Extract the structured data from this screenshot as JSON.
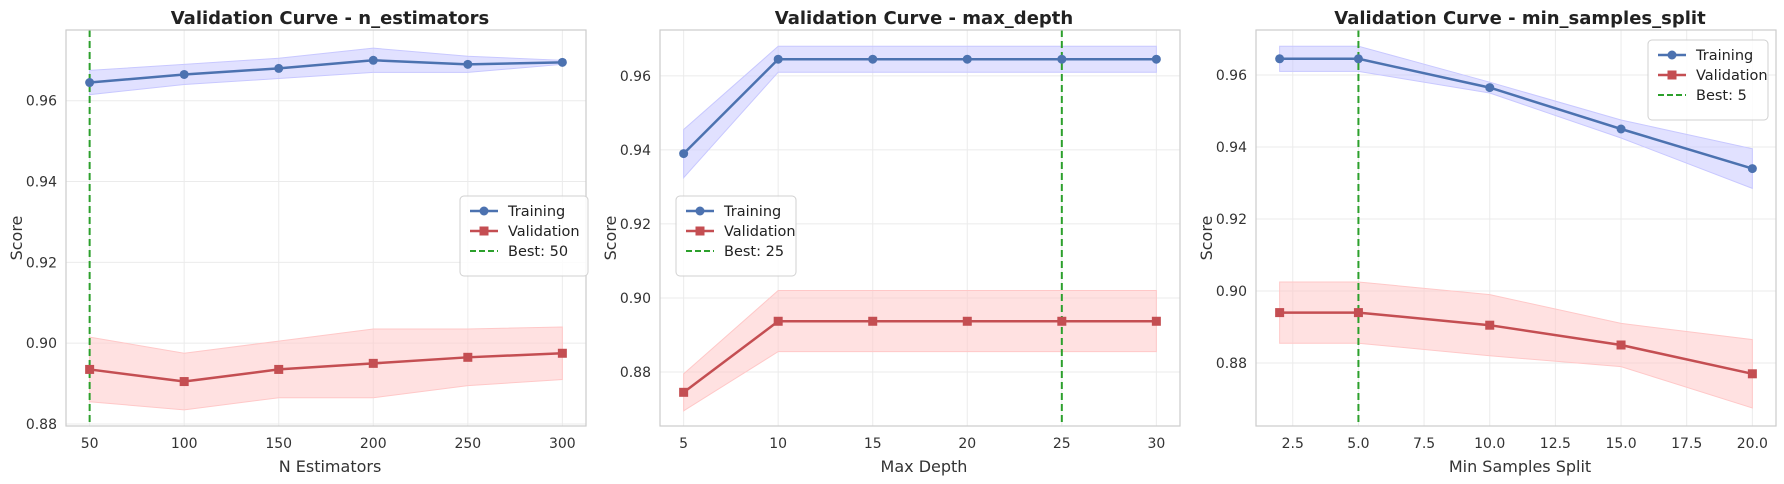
{
  "chart_data": [
    {
      "type": "line",
      "title": "Validation Curve - n_estimators",
      "xlabel": "N Estimators",
      "ylabel": "Score",
      "x": [
        50,
        100,
        150,
        200,
        250,
        300
      ],
      "xlim": [
        37.5,
        312.5
      ],
      "ylim": [
        0.8795,
        0.9775
      ],
      "xticks": [
        "50",
        "100",
        "150",
        "200",
        "250",
        "300"
      ],
      "yticks": [
        "0.88",
        "0.90",
        "0.92",
        "0.94",
        "0.96"
      ],
      "grid": true,
      "legend_position": "center-right",
      "series": [
        {
          "name": "Training",
          "color": "#4c72b0",
          "fill": "#c8c8ff",
          "marker": "circle",
          "values": [
            0.9645,
            0.9665,
            0.968,
            0.97,
            0.969,
            0.9695
          ],
          "lower": [
            0.9615,
            0.964,
            0.9655,
            0.967,
            0.967,
            0.969
          ],
          "upper": [
            0.9675,
            0.969,
            0.9705,
            0.973,
            0.971,
            0.97
          ]
        },
        {
          "name": "Validation",
          "color": "#c44e52",
          "fill": "#ffc8c8",
          "marker": "square",
          "values": [
            0.8935,
            0.8905,
            0.8935,
            0.895,
            0.8965,
            0.8975
          ],
          "lower": [
            0.8855,
            0.8835,
            0.8865,
            0.8865,
            0.8895,
            0.891
          ],
          "upper": [
            0.9015,
            0.8975,
            0.9005,
            0.9035,
            0.9035,
            0.904
          ]
        }
      ],
      "best": {
        "label": "Best: 50",
        "x": 50,
        "color": "#2ca02c"
      }
    },
    {
      "type": "line",
      "title": "Validation Curve - max_depth",
      "xlabel": "Max Depth",
      "ylabel": "Score",
      "x": [
        5,
        10,
        15,
        20,
        25,
        30
      ],
      "xlim": [
        3.75,
        31.25
      ],
      "ylim": [
        0.8654,
        0.9724
      ],
      "xticks": [
        "5",
        "10",
        "15",
        "20",
        "25",
        "30"
      ],
      "yticks": [
        "0.88",
        "0.90",
        "0.92",
        "0.94",
        "0.96"
      ],
      "grid": true,
      "legend_position": "center-left",
      "series": [
        {
          "name": "Training",
          "color": "#4c72b0",
          "fill": "#c8c8ff",
          "marker": "circle",
          "values": [
            0.939,
            0.9645,
            0.9645,
            0.9645,
            0.9645,
            0.9645
          ],
          "lower": [
            0.9325,
            0.961,
            0.961,
            0.961,
            0.961,
            0.961
          ],
          "upper": [
            0.9455,
            0.968,
            0.968,
            0.968,
            0.968,
            0.968
          ]
        },
        {
          "name": "Validation",
          "color": "#c44e52",
          "fill": "#ffc8c8",
          "marker": "square",
          "values": [
            0.8745,
            0.8937,
            0.8937,
            0.8937,
            0.8937,
            0.8937
          ],
          "lower": [
            0.8695,
            0.8855,
            0.8855,
            0.8855,
            0.8855,
            0.8855
          ],
          "upper": [
            0.8795,
            0.902,
            0.902,
            0.902,
            0.902,
            0.902
          ]
        }
      ],
      "best": {
        "label": "Best: 25",
        "x": 25,
        "color": "#2ca02c"
      }
    },
    {
      "type": "line",
      "title": "Validation Curve - min_samples_split",
      "xlabel": "Min Samples Split",
      "ylabel": "Score",
      "x": [
        2,
        5,
        10,
        15,
        20
      ],
      "xlim": [
        1.1,
        20.9
      ],
      "ylim": [
        0.8625,
        0.9725
      ],
      "xticks": [
        "2.5",
        "5.0",
        "7.5",
        "10.0",
        "12.5",
        "15.0",
        "17.5",
        "20.0"
      ],
      "xtick_values": [
        2.5,
        5.0,
        7.5,
        10.0,
        12.5,
        15.0,
        17.5,
        20.0
      ],
      "yticks": [
        "0.88",
        "0.90",
        "0.92",
        "0.94",
        "0.96"
      ],
      "grid": true,
      "legend_position": "top-right",
      "series": [
        {
          "name": "Training",
          "color": "#4c72b0",
          "fill": "#c8c8ff",
          "marker": "circle",
          "values": [
            0.9645,
            0.9645,
            0.9565,
            0.945,
            0.934
          ],
          "lower": [
            0.961,
            0.961,
            0.955,
            0.9425,
            0.9285
          ],
          "upper": [
            0.968,
            0.968,
            0.958,
            0.9475,
            0.9395
          ]
        },
        {
          "name": "Validation",
          "color": "#c44e52",
          "fill": "#ffc8c8",
          "marker": "square",
          "values": [
            0.894,
            0.894,
            0.8905,
            0.885,
            0.877
          ],
          "lower": [
            0.8855,
            0.8855,
            0.882,
            0.879,
            0.8675
          ],
          "upper": [
            0.9025,
            0.9025,
            0.899,
            0.891,
            0.8865
          ]
        }
      ],
      "best": {
        "label": "Best: 5",
        "x": 5,
        "color": "#2ca02c"
      }
    }
  ]
}
